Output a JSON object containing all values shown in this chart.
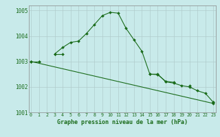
{
  "x": [
    0,
    1,
    2,
    3,
    4,
    5,
    6,
    7,
    8,
    9,
    10,
    11,
    12,
    13,
    14,
    15,
    16,
    17,
    18,
    19,
    20,
    21,
    22,
    23
  ],
  "line1": [
    1003.0,
    1003.0,
    null,
    1003.3,
    1003.55,
    1003.75,
    1003.8,
    1004.1,
    1004.45,
    1004.8,
    1004.93,
    1004.9,
    1004.3,
    1003.85,
    1003.4,
    1002.5,
    1002.5,
    1002.2,
    1002.15,
    1002.05,
    1002.0,
    1001.85,
    1001.75,
    1001.4
  ],
  "line2": [
    1003.0,
    1003.0,
    null,
    1003.3,
    1003.3,
    null,
    null,
    null,
    null,
    null,
    null,
    null,
    null,
    null,
    null,
    1002.5,
    1002.48,
    1002.22,
    1002.18,
    null,
    1002.05,
    null,
    null,
    1001.4
  ],
  "line3_x": [
    0,
    23
  ],
  "line3_y": [
    1003.0,
    1001.35
  ],
  "line_color": "#1a6b1a",
  "bg_color": "#c8eaea",
  "grid_color": "#b0cccc",
  "xlabel": "Graphe pression niveau de la mer (hPa)",
  "ylim": [
    1001.0,
    1005.2
  ],
  "yticks": [
    1001,
    1002,
    1003,
    1004,
    1005
  ],
  "xticks": [
    0,
    1,
    2,
    3,
    4,
    5,
    6,
    7,
    8,
    9,
    10,
    11,
    12,
    13,
    14,
    15,
    16,
    17,
    18,
    19,
    20,
    21,
    22,
    23
  ],
  "title_color": "#1a6b1a"
}
